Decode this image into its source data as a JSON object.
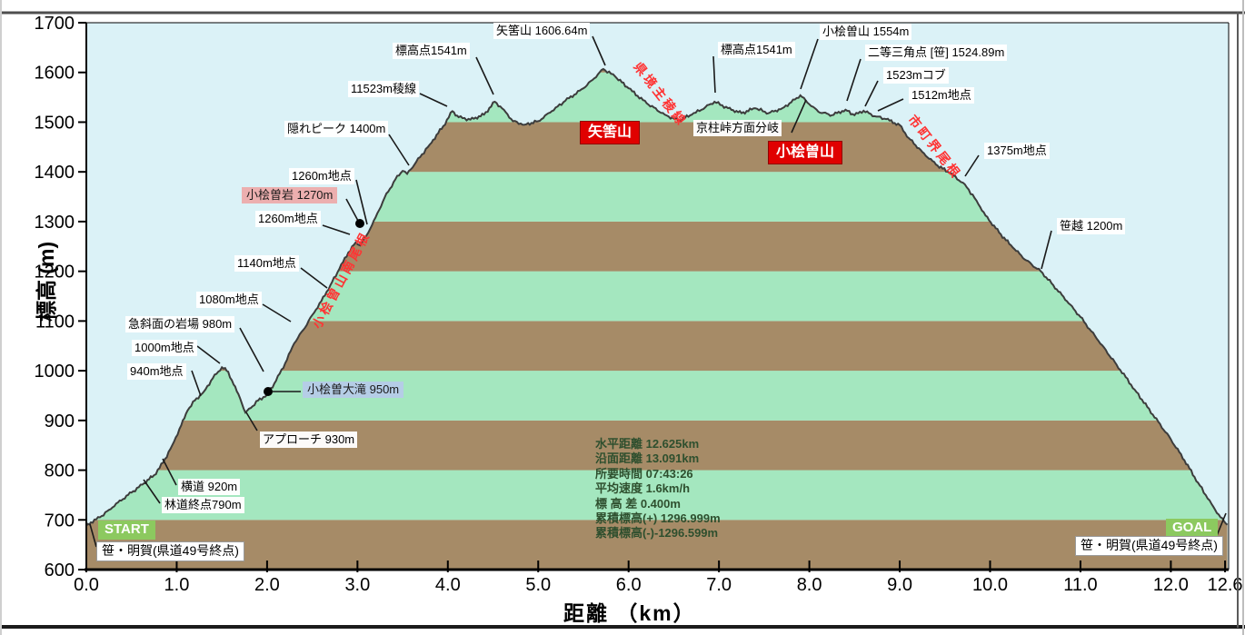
{
  "chart_data": {
    "type": "area",
    "title": "",
    "xlabel": "距離 （km）",
    "ylabel": "標高 (m)",
    "xlim": [
      0,
      12.6
    ],
    "ylim": [
      600,
      1700
    ],
    "x_ticks": [
      0,
      1,
      2,
      3,
      4,
      5,
      6,
      7,
      8,
      9,
      10,
      11,
      12,
      12.6
    ],
    "x_tick_labels": [
      "0.0",
      "1.0",
      "2.0",
      "3.0",
      "4.0",
      "5.0",
      "6.0",
      "7.0",
      "8.0",
      "9.0",
      "10.0",
      "11.0",
      "12.0",
      "12.6"
    ],
    "y_ticks": [
      600,
      700,
      800,
      900,
      1000,
      1100,
      1200,
      1300,
      1400,
      1500,
      1600,
      1700
    ],
    "grid": false,
    "legend": "none",
    "profile_km_m": [
      [
        0.0,
        688
      ],
      [
        0.05,
        695
      ],
      [
        0.15,
        705
      ],
      [
        0.25,
        720
      ],
      [
        0.35,
        735
      ],
      [
        0.5,
        755
      ],
      [
        0.62,
        771
      ],
      [
        0.75,
        790
      ],
      [
        0.85,
        815
      ],
      [
        0.95,
        850
      ],
      [
        1.05,
        890
      ],
      [
        1.12,
        920
      ],
      [
        1.2,
        940
      ],
      [
        1.3,
        958
      ],
      [
        1.4,
        985
      ],
      [
        1.5,
        1007
      ],
      [
        1.57,
        998
      ],
      [
        1.63,
        972
      ],
      [
        1.7,
        945
      ],
      [
        1.76,
        916
      ],
      [
        1.82,
        925
      ],
      [
        1.9,
        940
      ],
      [
        2.0,
        952
      ],
      [
        2.1,
        980
      ],
      [
        2.2,
        1015
      ],
      [
        2.3,
        1055
      ],
      [
        2.4,
        1082
      ],
      [
        2.5,
        1112
      ],
      [
        2.6,
        1140
      ],
      [
        2.7,
        1172
      ],
      [
        2.8,
        1205
      ],
      [
        2.9,
        1238
      ],
      [
        2.98,
        1258
      ],
      [
        3.03,
        1252
      ],
      [
        3.1,
        1272
      ],
      [
        3.2,
        1308
      ],
      [
        3.3,
        1348
      ],
      [
        3.42,
        1385
      ],
      [
        3.5,
        1402
      ],
      [
        3.55,
        1396
      ],
      [
        3.65,
        1420
      ],
      [
        3.8,
        1455
      ],
      [
        3.95,
        1492
      ],
      [
        4.05,
        1522
      ],
      [
        4.12,
        1510
      ],
      [
        4.25,
        1505
      ],
      [
        4.4,
        1515
      ],
      [
        4.52,
        1541
      ],
      [
        4.62,
        1525
      ],
      [
        4.72,
        1502
      ],
      [
        4.85,
        1495
      ],
      [
        5.0,
        1502
      ],
      [
        5.15,
        1522
      ],
      [
        5.3,
        1543
      ],
      [
        5.5,
        1568
      ],
      [
        5.62,
        1588
      ],
      [
        5.72,
        1607
      ],
      [
        5.85,
        1592
      ],
      [
        6.0,
        1568
      ],
      [
        6.2,
        1538
      ],
      [
        6.4,
        1515
      ],
      [
        6.55,
        1503
      ],
      [
        6.7,
        1515
      ],
      [
        6.85,
        1530
      ],
      [
        6.95,
        1541
      ],
      [
        7.1,
        1528
      ],
      [
        7.25,
        1518
      ],
      [
        7.4,
        1528
      ],
      [
        7.55,
        1518
      ],
      [
        7.7,
        1528
      ],
      [
        7.8,
        1540
      ],
      [
        7.9,
        1554
      ],
      [
        8.0,
        1536
      ],
      [
        8.1,
        1521
      ],
      [
        8.25,
        1514
      ],
      [
        8.4,
        1525
      ],
      [
        8.5,
        1514
      ],
      [
        8.6,
        1523
      ],
      [
        8.72,
        1512
      ],
      [
        8.85,
        1506
      ],
      [
        9.0,
        1494
      ],
      [
        9.1,
        1468
      ],
      [
        9.25,
        1440
      ],
      [
        9.4,
        1415
      ],
      [
        9.55,
        1398
      ],
      [
        9.72,
        1375
      ],
      [
        9.85,
        1342
      ],
      [
        9.95,
        1312
      ],
      [
        10.1,
        1278
      ],
      [
        10.25,
        1248
      ],
      [
        10.4,
        1222
      ],
      [
        10.56,
        1200
      ],
      [
        10.7,
        1172
      ],
      [
        10.85,
        1140
      ],
      [
        11.0,
        1108
      ],
      [
        11.2,
        1060
      ],
      [
        11.4,
        1012
      ],
      [
        11.6,
        962
      ],
      [
        11.8,
        912
      ],
      [
        12.0,
        862
      ],
      [
        12.15,
        820
      ],
      [
        12.3,
        775
      ],
      [
        12.45,
        732
      ],
      [
        12.55,
        705
      ],
      [
        12.625,
        690
      ]
    ],
    "annotations": [
      {
        "t": "矢筈山 1606.64m",
        "s": "w",
        "l": [
          543,
          25
        ],
        "a": [
          652,
          40,
          666,
          72
        ]
      },
      {
        "t": "標高点1541m",
        "s": "w",
        "l": [
          432,
          47
        ],
        "a": [
          524,
          63,
          543,
          104
        ]
      },
      {
        "t": "11523m稜線",
        "s": "w",
        "l": [
          383,
          89
        ],
        "a": [
          462,
          103,
          492,
          117
        ]
      },
      {
        "t": "隠れピーク 1400m",
        "s": "w",
        "l": [
          313,
          133
        ],
        "a": [
          428,
          148,
          450,
          182
        ]
      },
      {
        "t": "1260m地点",
        "s": "w",
        "l": [
          318,
          185
        ],
        "a": [
          392,
          198,
          404,
          247
        ]
      },
      {
        "t": "小桧曽岩 1270m",
        "s": "pink",
        "l": [
          266,
          206
        ],
        "a": [
          381,
          219,
          394,
          243
        ],
        "dot": [
          396,
          246
        ]
      },
      {
        "t": "1260m地点",
        "s": "w",
        "l": [
          281,
          232
        ],
        "a": [
          355,
          248,
          385,
          258
        ]
      },
      {
        "t": "1140m地点",
        "s": "w",
        "l": [
          258,
          281
        ],
        "a": [
          331,
          295,
          360,
          317
        ]
      },
      {
        "t": "1080m地点",
        "s": "w",
        "l": [
          216,
          321
        ],
        "a": [
          289,
          335,
          320,
          354
        ]
      },
      {
        "t": "急斜面の岩場 980m",
        "s": "w",
        "l": [
          138,
          348
        ],
        "a": [
          264,
          361,
          290,
          409
        ]
      },
      {
        "t": "1000m地点",
        "s": "w",
        "l": [
          145,
          374
        ],
        "a": [
          217,
          381,
          242,
          400
        ]
      },
      {
        "t": "940m地点",
        "s": "w",
        "l": [
          140,
          400
        ],
        "a": [
          211,
          408,
          221,
          436
        ]
      },
      {
        "t": "小桧曽大滝 950m",
        "s": "blue",
        "l": [
          333,
          420
        ],
        "a": [
          331,
          431,
          300,
          431
        ],
        "dot": [
          295,
          431
        ]
      },
      {
        "t": "アプローチ 930m",
        "s": "w",
        "l": [
          286,
          475
        ],
        "a": [
          283,
          474,
          271,
          454
        ]
      },
      {
        "t": "横道 920m",
        "s": "w",
        "l": [
          196,
          527
        ],
        "a": [
          194,
          534,
          179,
          505
        ]
      },
      {
        "t": "林道終点790m",
        "s": "w",
        "l": [
          178,
          547
        ],
        "a": [
          176,
          554,
          158,
          528
        ]
      },
      {
        "t": "標高点1541m",
        "s": "w",
        "l": [
          790,
          46
        ],
        "a": [
          785,
          62,
          787,
          102
        ]
      },
      {
        "t": "京柱峠方面分岐",
        "s": "w",
        "l": [
          763,
          132
        ],
        "a": [
          871,
          146,
          887,
          110
        ]
      },
      {
        "t": "小桧曽山 1554m",
        "s": "w",
        "l": [
          902,
          26
        ],
        "a": [
          900,
          43,
          881,
          98
        ]
      },
      {
        "t": "二等三角点 [笹] 1524.89m",
        "s": "w",
        "l": [
          952,
          49
        ],
        "a": [
          947,
          65,
          932,
          111
        ]
      },
      {
        "t": "1523mコブ",
        "s": "w",
        "l": [
          972,
          74
        ],
        "a": [
          966,
          89,
          952,
          117
        ]
      },
      {
        "t": "1512m地点",
        "s": "w",
        "l": [
          1000,
          96
        ],
        "a": [
          994,
          109,
          966,
          122
        ]
      },
      {
        "t": "1375m地点",
        "s": "w",
        "l": [
          1083,
          157
        ],
        "a": [
          1077,
          171,
          1062,
          194
        ]
      },
      {
        "t": "笹越 1200m",
        "s": "w",
        "l": [
          1163,
          240
        ],
        "a": [
          1157,
          254,
          1146,
          296
        ]
      },
      {
        "t": "矢筈山",
        "s": "red",
        "l": [
          638,
          133
        ]
      },
      {
        "t": "小桧曽山",
        "s": "red",
        "l": [
          845,
          155
        ]
      },
      {
        "t": "START",
        "s": "green",
        "l": [
          108,
          573
        ]
      },
      {
        "t": "笹・明賀(県道49号終点)",
        "s": "box",
        "l": [
          106,
          596
        ],
        "a": [
          99,
          577,
          106,
          602
        ]
      },
      {
        "t": "GOAL",
        "s": "green",
        "l": [
          1283,
          571
        ]
      },
      {
        "t": "笹・明賀(県道49号終点)",
        "s": "box",
        "l": [
          1183,
          590
        ],
        "a": [
          1338,
          592,
          1349,
          565
        ]
      }
    ],
    "ridge_labels": [
      {
        "t": "県境主稜線",
        "x": 700,
        "y": 62,
        "deg": 52
      },
      {
        "t": "市町界尾根",
        "x": 1002,
        "y": 120,
        "deg": 52
      },
      {
        "t": "小桧曽山南尾根",
        "x": 348,
        "y": 352,
        "deg": -62
      }
    ],
    "stats": {
      "x": 655,
      "y": 481,
      "lines": [
        "水平距離 12.625km",
        "沿面距離 13.091km",
        "所要時間 07:43:26",
        "平均速度 1.6km/h",
        "標 高 差 0.400m",
        "累積標高(+) 1296.999m",
        "累積標高(-)-1296.599m"
      ]
    },
    "colors": {
      "sky": "#DBF2F7",
      "band_brown": "#A68B67",
      "band_green": "#A4E7BF",
      "profile_line": "#3C3C3C",
      "leader": "#1a1a1a",
      "axis": "#000000",
      "ridge_text": "#FF3333",
      "badge_red": "#E00000",
      "badge_green": "#8CC95F",
      "label_pink": "#ECAFAF",
      "label_blue": "#B5CDE6",
      "stats_text": "#2E4F2E"
    }
  }
}
